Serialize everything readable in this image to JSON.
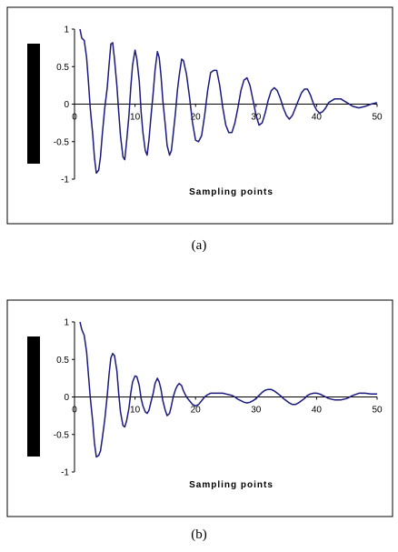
{
  "chart_data": [
    {
      "type": "line",
      "caption": "(a)",
      "xlabel": "Sampling points",
      "ylabel": "",
      "xlim": [
        0,
        50
      ],
      "ylim": [
        -1,
        1
      ],
      "x_ticks": [
        "0",
        "10",
        "20",
        "30",
        "40",
        "50"
      ],
      "y_ticks": [
        "1",
        "0.5",
        "0",
        "-0.5",
        "-1"
      ],
      "line_color": "#1a1a80",
      "series": [
        {
          "x": [
            0.9,
            1.2,
            1.6,
            2.0,
            2.3,
            2.6,
            3.0,
            3.3,
            3.6,
            4.0,
            4.3,
            4.6,
            5.0,
            5.4,
            5.7,
            6.0,
            6.3,
            6.6,
            7.0,
            7.3,
            7.6,
            8.0,
            8.3,
            8.6,
            9.0,
            9.3,
            9.6,
            10.0,
            10.3,
            10.7,
            11.0,
            11.3,
            11.7,
            12.0,
            12.3,
            12.6,
            13.0,
            13.3,
            13.7,
            14.0,
            14.3,
            14.6,
            15.0,
            15.3,
            15.7,
            16.0,
            16.3,
            16.7,
            17.0,
            17.3,
            17.7,
            18.0,
            18.5,
            19.0,
            19.5,
            20.0,
            20.5,
            21.0,
            21.5,
            22.0,
            22.5,
            23.0,
            23.5,
            24.0,
            24.5,
            25.0,
            25.5,
            26.0,
            26.5,
            27.0,
            27.5,
            28.0,
            28.5,
            29.0,
            29.5,
            30.0,
            30.5,
            31.0,
            31.5,
            32.0,
            32.5,
            33.0,
            33.5,
            34.0,
            34.5,
            35.0,
            35.5,
            36.0,
            36.5,
            37.0,
            37.5,
            38.0,
            38.5,
            39.0,
            39.5,
            40.0,
            40.5,
            41.0,
            41.5,
            42.0,
            43.0,
            44.0,
            45.0,
            46.0,
            47.0,
            48.0,
            49.0,
            50.0
          ],
          "y": [
            1.0,
            0.88,
            0.85,
            0.62,
            0.3,
            -0.05,
            -0.4,
            -0.72,
            -0.92,
            -0.88,
            -0.7,
            -0.4,
            -0.05,
            0.22,
            0.52,
            0.8,
            0.82,
            0.6,
            0.25,
            -0.1,
            -0.42,
            -0.7,
            -0.74,
            -0.5,
            -0.15,
            0.22,
            0.52,
            0.72,
            0.6,
            0.3,
            -0.1,
            -0.38,
            -0.62,
            -0.68,
            -0.48,
            -0.2,
            0.15,
            0.45,
            0.7,
            0.62,
            0.38,
            0.05,
            -0.28,
            -0.55,
            -0.68,
            -0.62,
            -0.4,
            -0.1,
            0.18,
            0.38,
            0.6,
            0.58,
            0.4,
            0.1,
            -0.25,
            -0.48,
            -0.5,
            -0.42,
            -0.15,
            0.18,
            0.42,
            0.45,
            0.45,
            0.25,
            -0.05,
            -0.28,
            -0.38,
            -0.38,
            -0.25,
            -0.05,
            0.18,
            0.32,
            0.35,
            0.25,
            0.05,
            -0.15,
            -0.28,
            -0.25,
            -0.12,
            0.05,
            0.18,
            0.22,
            0.18,
            0.08,
            -0.05,
            -0.15,
            -0.2,
            -0.15,
            -0.05,
            0.05,
            0.15,
            0.2,
            0.2,
            0.12,
            0.0,
            -0.08,
            -0.12,
            -0.1,
            -0.05,
            0.02,
            0.07,
            0.07,
            0.02,
            -0.03,
            -0.05,
            -0.03,
            0.0,
            0.02
          ]
        }
      ]
    },
    {
      "type": "line",
      "caption": "(b)",
      "xlabel": "Sampling points",
      "ylabel": "",
      "xlim": [
        0,
        50
      ],
      "ylim": [
        -1,
        1
      ],
      "x_ticks": [
        "0",
        "10",
        "20",
        "30",
        "40",
        "50"
      ],
      "y_ticks": [
        "1",
        "0.5",
        "0",
        "-0.5",
        "-1"
      ],
      "line_color": "#1a1a80",
      "series": [
        {
          "x": [
            0.9,
            1.2,
            1.6,
            2.0,
            2.3,
            2.6,
            3.0,
            3.3,
            3.6,
            4.0,
            4.3,
            4.6,
            5.0,
            5.4,
            5.7,
            6.0,
            6.3,
            6.6,
            7.0,
            7.3,
            7.6,
            8.0,
            8.3,
            8.6,
            9.0,
            9.3,
            9.6,
            10.0,
            10.3,
            10.7,
            11.0,
            11.3,
            11.7,
            12.0,
            12.3,
            12.6,
            13.0,
            13.3,
            13.7,
            14.0,
            14.3,
            14.6,
            15.0,
            15.3,
            15.7,
            16.0,
            16.3,
            16.7,
            17.0,
            17.3,
            17.7,
            18.0,
            18.5,
            19.0,
            19.5,
            20.0,
            20.5,
            21.0,
            21.5,
            22.0,
            22.5,
            23.0,
            23.5,
            24.0,
            24.5,
            25.0,
            25.5,
            26.0,
            26.5,
            27.0,
            27.5,
            28.0,
            28.5,
            29.0,
            29.5,
            30.0,
            30.5,
            31.0,
            31.5,
            32.0,
            32.5,
            33.0,
            33.5,
            34.0,
            34.5,
            35.0,
            35.5,
            36.0,
            36.5,
            37.0,
            37.5,
            38.0,
            38.5,
            39.0,
            39.5,
            40.0,
            40.5,
            41.0,
            41.5,
            42.0,
            43.0,
            44.0,
            45.0,
            46.0,
            47.0,
            48.0,
            49.0,
            50.0
          ],
          "y": [
            1.0,
            0.9,
            0.82,
            0.6,
            0.3,
            0.0,
            -0.32,
            -0.62,
            -0.8,
            -0.78,
            -0.72,
            -0.55,
            -0.3,
            0.02,
            0.3,
            0.52,
            0.58,
            0.55,
            0.35,
            0.05,
            -0.2,
            -0.38,
            -0.4,
            -0.32,
            -0.15,
            0.05,
            0.2,
            0.28,
            0.27,
            0.15,
            -0.02,
            -0.12,
            -0.2,
            -0.22,
            -0.18,
            -0.08,
            0.05,
            0.18,
            0.25,
            0.2,
            0.1,
            -0.05,
            -0.18,
            -0.25,
            -0.22,
            -0.12,
            0.0,
            0.1,
            0.15,
            0.18,
            0.15,
            0.08,
            0.0,
            -0.05,
            -0.1,
            -0.12,
            -0.1,
            -0.05,
            0.0,
            0.03,
            0.05,
            0.05,
            0.05,
            0.05,
            0.05,
            0.04,
            0.03,
            0.02,
            0.0,
            -0.03,
            -0.05,
            -0.07,
            -0.08,
            -0.07,
            -0.05,
            -0.02,
            0.02,
            0.06,
            0.09,
            0.1,
            0.1,
            0.08,
            0.05,
            0.02,
            -0.02,
            -0.05,
            -0.08,
            -0.1,
            -0.1,
            -0.08,
            -0.05,
            -0.02,
            0.02,
            0.04,
            0.05,
            0.05,
            0.04,
            0.02,
            0.0,
            -0.02,
            -0.04,
            -0.04,
            -0.02,
            0.02,
            0.05,
            0.05,
            0.04,
            0.04
          ]
        }
      ]
    }
  ]
}
